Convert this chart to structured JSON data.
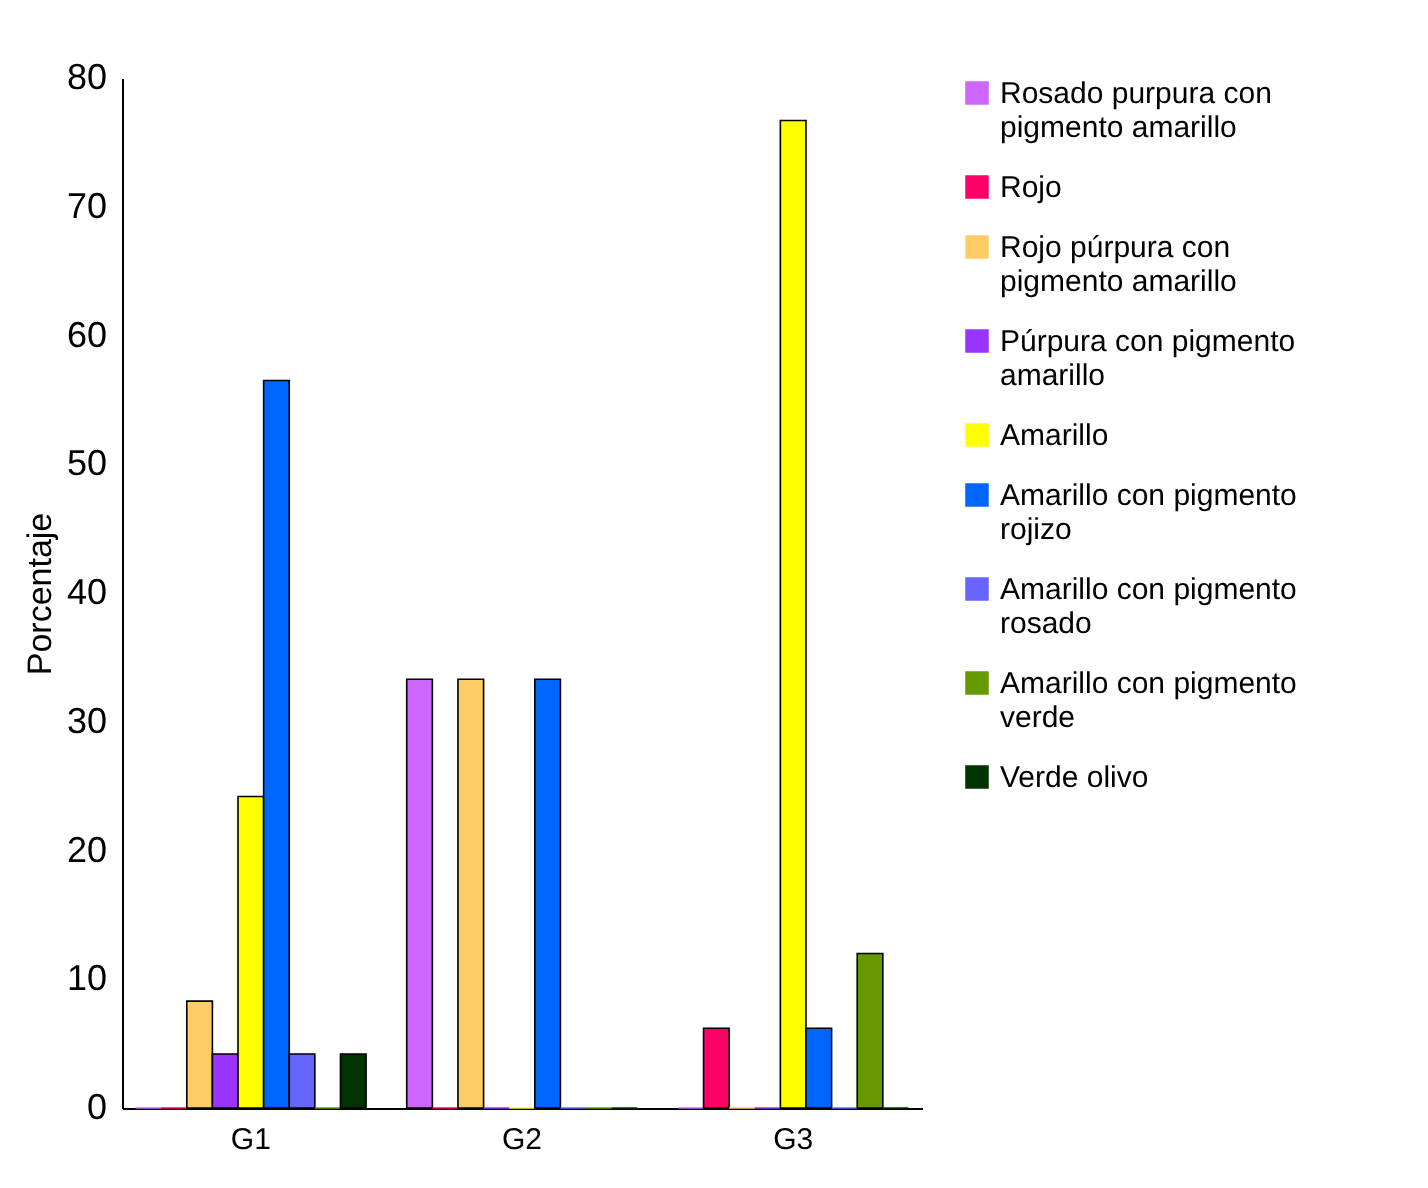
{
  "chart_data": {
    "type": "bar",
    "ylabel": "Porcentaje",
    "categories": [
      "G1",
      "G2",
      "G3"
    ],
    "ylim": [
      0,
      80
    ],
    "yticks": [
      0,
      10,
      20,
      30,
      40,
      50,
      60,
      70,
      80
    ],
    "grid": false,
    "legend": "right",
    "series": [
      {
        "name": "Rosado purpura con pigmento amarillo",
        "color": "#cc66ff",
        "values": [
          0,
          33.3,
          0
        ]
      },
      {
        "name": "Rojo",
        "color": "#ff0066",
        "values": [
          0,
          0,
          6.2
        ]
      },
      {
        "name": "Rojo púrpura con pigmento amarillo",
        "color": "#ffcc66",
        "values": [
          8.3,
          33.3,
          0
        ]
      },
      {
        "name": "Púrpura con pigmento amarillo",
        "color": "#9933ff",
        "values": [
          4.2,
          0,
          0
        ]
      },
      {
        "name": "Amarillo",
        "color": "#ffff00",
        "values": [
          24.2,
          0,
          76.7
        ]
      },
      {
        "name": "Amarillo con pigmento rojizo",
        "color": "#0066ff",
        "values": [
          56.5,
          33.3,
          6.2
        ]
      },
      {
        "name": "Amarillo con pigmento rosado",
        "color": "#6666ff",
        "values": [
          4.2,
          0,
          0
        ]
      },
      {
        "name": "Amarillo con pigmento verde",
        "color": "#669900",
        "values": [
          0,
          0,
          12
        ]
      },
      {
        "name": "Verde olivo",
        "color": "#003300",
        "values": [
          4.2,
          0,
          0
        ]
      }
    ]
  }
}
